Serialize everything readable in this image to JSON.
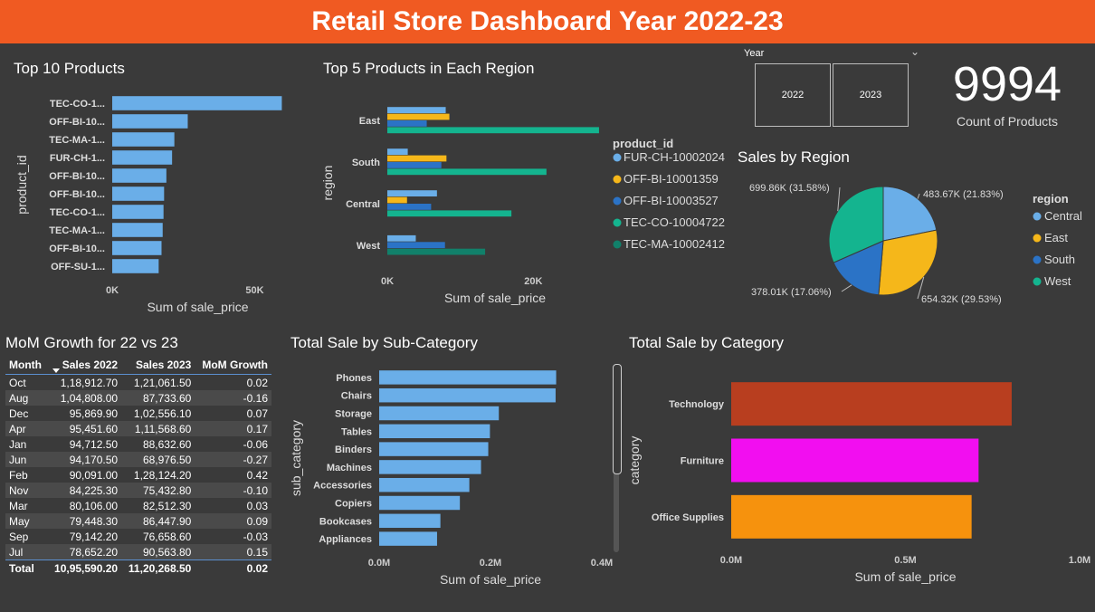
{
  "header": {
    "title": "Retail Store Dashboard Year 2022-23"
  },
  "colors": {
    "blue": "#6aaee8",
    "orange": "#f5b71a",
    "darkblue": "#2b73c6",
    "teal": "#14b48f",
    "darkteal": "#11806a",
    "technology": "#b83e1f",
    "furniture": "#f20ef0",
    "office": "#f6920d",
    "header": "#f05a22"
  },
  "slicer": {
    "label": "Year",
    "options": [
      "2022",
      "2023"
    ]
  },
  "kpi": {
    "value": "9994",
    "label": "Count of Products"
  },
  "titles": {
    "top10": "Top 10 Products",
    "top5region": "Top 5 Products in Each Region",
    "salesRegion": "Sales by Region",
    "mom": "MoM Growth for 22 vs 23",
    "subcat": "Total Sale by Sub-Category",
    "category": "Total Sale by Category"
  },
  "chart_data": [
    {
      "id": "top10",
      "type": "bar",
      "orientation": "horizontal",
      "title": "Top 10 Products",
      "xlabel": "Sum of sale_price",
      "ylabel": "product_id",
      "categories": [
        "TEC-CO-1...",
        "OFF-BI-10...",
        "TEC-MA-1...",
        "FUR-CH-1...",
        "OFF-BI-10...",
        "OFF-BI-10...",
        "TEC-CO-1...",
        "TEC-MA-1...",
        "OFF-BI-10...",
        "OFF-SU-1..."
      ],
      "values": [
        59500,
        26500,
        21800,
        21000,
        19000,
        18200,
        18000,
        17700,
        17300,
        16300
      ],
      "xlim": [
        0,
        60000
      ],
      "xticks": [
        {
          "v": 0,
          "label": "0K"
        },
        {
          "v": 50000,
          "label": "50K"
        }
      ],
      "color": "#6aaee8"
    },
    {
      "id": "top5region",
      "type": "bar",
      "orientation": "horizontal",
      "title": "Top 5 Products in Each Region",
      "xlabel": "Sum of sale_price",
      "ylabel": "region",
      "categories": [
        "East",
        "South",
        "Central",
        "West"
      ],
      "series": [
        {
          "name": "FUR-CH-10002024",
          "color": "#6aaee8",
          "values": [
            8000,
            2800,
            6800,
            3900
          ]
        },
        {
          "name": "OFF-BI-10001359",
          "color": "#f5b71a",
          "values": [
            8500,
            8100,
            2700,
            null
          ]
        },
        {
          "name": "OFF-BI-10003527",
          "color": "#2b73c6",
          "values": [
            5400,
            7400,
            6000,
            7900
          ]
        },
        {
          "name": "TEC-CO-10004722",
          "color": "#14b48f",
          "values": [
            29000,
            21800,
            17000,
            null
          ]
        },
        {
          "name": "TEC-MA-10002412",
          "color": "#11806a",
          "values": [
            null,
            null,
            null,
            13400
          ]
        }
      ],
      "xlim": [
        0,
        30000
      ],
      "xticks": [
        {
          "v": 0,
          "label": "0K"
        },
        {
          "v": 20000,
          "label": "20K"
        }
      ],
      "legend_title": "product_id"
    },
    {
      "id": "salesRegion",
      "type": "pie",
      "title": "Sales by Region",
      "legend_title": "region",
      "slices": [
        {
          "name": "Central",
          "value": 483.67,
          "label": "483.67K (21.83%)",
          "color": "#6aaee8"
        },
        {
          "name": "East",
          "value": 654.32,
          "label": "654.32K (29.53%)",
          "color": "#f5b71a"
        },
        {
          "name": "South",
          "value": 378.01,
          "label": "378.01K (17.06%)",
          "color": "#2b73c6"
        },
        {
          "name": "West",
          "value": 699.86,
          "label": "699.86K (31.58%)",
          "color": "#14b48f"
        }
      ]
    },
    {
      "id": "mom",
      "type": "table",
      "title": "MoM Growth for 22 vs 23",
      "columns": [
        "Month",
        "Sales 2022",
        "Sales 2023",
        "MoM Growth"
      ],
      "rows": [
        [
          "Oct",
          "1,18,912.70",
          "1,21,061.50",
          "0.02"
        ],
        [
          "Aug",
          "1,04,808.00",
          "87,733.60",
          "-0.16"
        ],
        [
          "Dec",
          "95,869.90",
          "1,02,556.10",
          "0.07"
        ],
        [
          "Apr",
          "95,451.60",
          "1,11,568.60",
          "0.17"
        ],
        [
          "Jan",
          "94,712.50",
          "88,632.60",
          "-0.06"
        ],
        [
          "Jun",
          "94,170.50",
          "68,976.50",
          "-0.27"
        ],
        [
          "Feb",
          "90,091.00",
          "1,28,124.20",
          "0.42"
        ],
        [
          "Nov",
          "84,225.30",
          "75,432.80",
          "-0.10"
        ],
        [
          "Mar",
          "80,106.00",
          "82,512.30",
          "0.03"
        ],
        [
          "May",
          "79,448.30",
          "86,447.90",
          "0.09"
        ],
        [
          "Sep",
          "79,142.20",
          "76,658.60",
          "-0.03"
        ],
        [
          "Jul",
          "78,652.20",
          "90,563.80",
          "0.15"
        ]
      ],
      "total": [
        "Total",
        "10,95,590.20",
        "11,20,268.50",
        "0.02"
      ]
    },
    {
      "id": "subcat",
      "type": "bar",
      "orientation": "horizontal",
      "title": "Total Sale by Sub-Category",
      "xlabel": "Sum of sale_price",
      "ylabel": "sub_category",
      "categories": [
        "Phones",
        "Chairs",
        "Storage",
        "Tables",
        "Binders",
        "Machines",
        "Accessories",
        "Copiers",
        "Bookcases",
        "Appliances"
      ],
      "values": [
        318000,
        317000,
        215000,
        199000,
        196000,
        183000,
        162000,
        145000,
        110000,
        104000
      ],
      "xlim": [
        0,
        400000
      ],
      "xticks": [
        {
          "v": 0,
          "label": "0.0M"
        },
        {
          "v": 200000,
          "label": "0.2M"
        },
        {
          "v": 400000,
          "label": "0.4M"
        }
      ],
      "color": "#6aaee8"
    },
    {
      "id": "category",
      "type": "bar",
      "orientation": "horizontal",
      "title": "Total Sale by Category",
      "xlabel": "Sum of sale_price",
      "ylabel": "category",
      "categories": [
        "Technology",
        "Furniture",
        "Office Supplies"
      ],
      "values": [
        805000,
        710000,
        690000
      ],
      "colors": [
        "#b83e1f",
        "#f20ef0",
        "#f6920d"
      ],
      "xlim": [
        0,
        1000000
      ],
      "xticks": [
        {
          "v": 0,
          "label": "0.0M"
        },
        {
          "v": 500000,
          "label": "0.5M"
        },
        {
          "v": 1000000,
          "label": "1.0M"
        }
      ]
    }
  ]
}
